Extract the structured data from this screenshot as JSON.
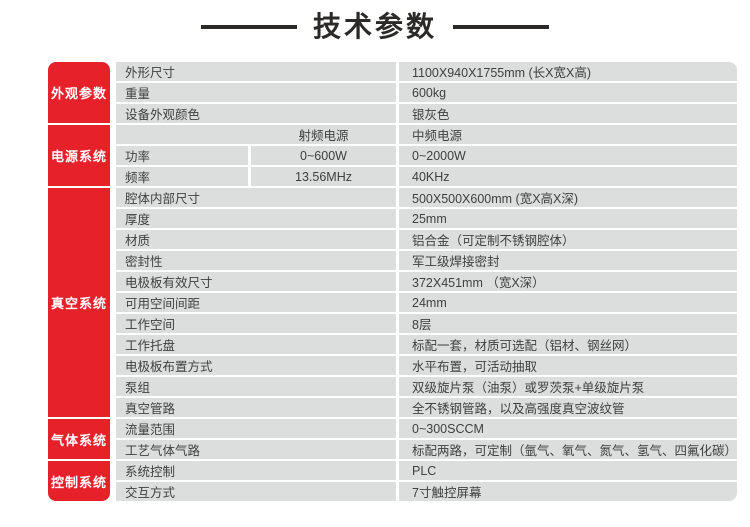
{
  "title": {
    "text": "技术参数"
  },
  "colors": {
    "accent_red": "#e6212a",
    "row_gray": "#dcdddd",
    "text_dark": "#3f3f3f",
    "title_dark": "#2b2a28"
  },
  "sections": [
    {
      "label": "外观参数",
      "row_span": 3
    },
    {
      "label": "电源系统",
      "row_span": 3
    },
    {
      "label": "真空系统",
      "row_span": 11
    },
    {
      "label": "气体系统",
      "row_span": 2
    },
    {
      "label": "控制系统",
      "row_span": 2
    }
  ],
  "rows": [
    {
      "type": "plain",
      "label": "外形尺寸",
      "value": "1100X940X1755mm (长X宽X高)"
    },
    {
      "type": "plain",
      "label": "重量",
      "value": "600kg"
    },
    {
      "type": "plain",
      "label": "设备外观颜色",
      "value": "银灰色"
    },
    {
      "type": "power_header",
      "label": "",
      "mid": "射频电源",
      "value": "中频电源"
    },
    {
      "type": "power",
      "label": "功率",
      "mid": "0~600W",
      "value": "0~2000W"
    },
    {
      "type": "power",
      "label": "频率",
      "mid": "13.56MHz",
      "value": "40KHz"
    },
    {
      "type": "plain",
      "label": "腔体内部尺寸",
      "value": "500X500X600mm (宽X高X深)"
    },
    {
      "type": "plain",
      "label": "厚度",
      "value": "25mm"
    },
    {
      "type": "plain",
      "label": "材质",
      "value": "铝合金（可定制不锈钢腔体）"
    },
    {
      "type": "plain",
      "label": "密封性",
      "value": "军工级焊接密封"
    },
    {
      "type": "plain",
      "label": "电极板有效尺寸",
      "value": "372X451mm （宽X深）"
    },
    {
      "type": "plain",
      "label": "可用空间间距",
      "value": "24mm"
    },
    {
      "type": "plain",
      "label": "工作空间",
      "value": "8层"
    },
    {
      "type": "plain",
      "label": "工作托盘",
      "value": "标配一套，材质可选配（铝材、钢丝网）"
    },
    {
      "type": "plain",
      "label": "电极板布置方式",
      "value": "水平布置，可活动抽取"
    },
    {
      "type": "plain",
      "label": "泵组",
      "value": "双级旋片泵（油泵）或罗茨泵+单级旋片泵"
    },
    {
      "type": "plain",
      "label": "真空管路",
      "value": "全不锈钢管路，以及高强度真空波纹管"
    },
    {
      "type": "plain",
      "label": "流量范围",
      "value": "0~300SCCM"
    },
    {
      "type": "plain",
      "label": "工艺气体气路",
      "value": "标配两路，可定制（氩气、氧气、氮气、氢气、四氟化碳）"
    },
    {
      "type": "plain",
      "label": "系统控制",
      "value": "PLC"
    },
    {
      "type": "plain",
      "label": "交互方式",
      "value": "7寸触控屏幕"
    }
  ]
}
